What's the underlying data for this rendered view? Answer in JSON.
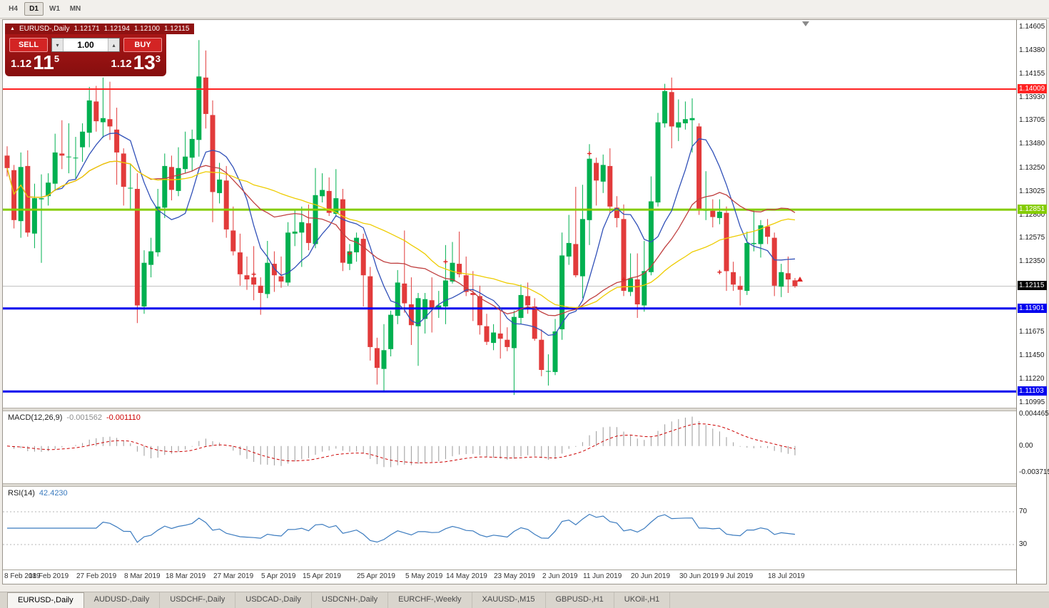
{
  "toolbar": {
    "timeframes": [
      {
        "label": "H4",
        "active": false
      },
      {
        "label": "D1",
        "active": true
      },
      {
        "label": "W1",
        "active": false
      },
      {
        "label": "MN",
        "active": false
      }
    ]
  },
  "icons": {
    "collapse": "▲",
    "volume_down": "▾",
    "volume_up": "▴"
  },
  "quote_bar": {
    "symbol": "EURUSD-,Daily",
    "open": "1.12171",
    "high": "1.12194",
    "low": "1.12100",
    "close": "1.12115"
  },
  "trade_widget": {
    "sell_label": "SELL",
    "buy_label": "BUY",
    "volume": "1.00",
    "sell_price": {
      "prefix": "1.12",
      "big": "11",
      "sup": "5"
    },
    "buy_price": {
      "prefix": "1.12",
      "big": "13",
      "sup": "3"
    }
  },
  "chart_data": {
    "type": "candlestick",
    "symbol": "EURUSD",
    "timeframe": "Daily",
    "up_color": "#00b050",
    "down_color": "#e23b3b",
    "ylim": [
      1.10995,
      1.14605
    ],
    "y_ticks": [
      "1.14605",
      "1.14380",
      "1.14155",
      "1.13930",
      "1.13705",
      "1.13480",
      "1.13250",
      "1.13025",
      "1.12800",
      "1.12575",
      "1.12350",
      "1.12125",
      "1.11900",
      "1.11675",
      "1.11450",
      "1.11220",
      "1.10995"
    ],
    "x_ticks": [
      {
        "label": "8 Feb 2019",
        "bar": 0
      },
      {
        "label": "18 Feb 2019",
        "bar": 6
      },
      {
        "label": "27 Feb 2019",
        "bar": 13
      },
      {
        "label": "8 Mar 2019",
        "bar": 20
      },
      {
        "label": "18 Mar 2019",
        "bar": 26
      },
      {
        "label": "27 Mar 2019",
        "bar": 33
      },
      {
        "label": "5 Apr 2019",
        "bar": 40
      },
      {
        "label": "15 Apr 2019",
        "bar": 46
      },
      {
        "label": "25 Apr 2019",
        "bar": 54
      },
      {
        "label": "5 May 2019",
        "bar": 61
      },
      {
        "label": "14 May 2019",
        "bar": 67
      },
      {
        "label": "23 May 2019",
        "bar": 74
      },
      {
        "label": "2 Jun 2019",
        "bar": 81
      },
      {
        "label": "11 Jun 2019",
        "bar": 87
      },
      {
        "label": "20 Jun 2019",
        "bar": 94
      },
      {
        "label": "30 Jun 2019",
        "bar": 101
      },
      {
        "label": "9 Jul 2019",
        "bar": 107
      },
      {
        "label": "18 Jul 2019",
        "bar": 114
      }
    ],
    "candles": [
      [
        1.1337,
        1.1346,
        1.1317,
        1.1325
      ],
      [
        1.1323,
        1.1328,
        1.1267,
        1.1275
      ],
      [
        1.1274,
        1.134,
        1.1258,
        1.1326
      ],
      [
        1.1327,
        1.1342,
        1.1259,
        1.1263
      ],
      [
        1.1262,
        1.131,
        1.1248,
        1.1296
      ],
      [
        1.1295,
        1.1319,
        1.1234,
        1.1296
      ],
      [
        1.1298,
        1.132,
        1.1289,
        1.1311
      ],
      [
        1.131,
        1.1358,
        1.1303,
        1.134
      ],
      [
        1.1339,
        1.1371,
        1.1324,
        1.1337
      ],
      [
        1.1336,
        1.1368,
        1.132,
        1.1336
      ],
      [
        1.1335,
        1.1355,
        1.1315,
        1.1335
      ],
      [
        1.1345,
        1.1368,
        1.1331,
        1.136
      ],
      [
        1.1359,
        1.1403,
        1.1345,
        1.139
      ],
      [
        1.1389,
        1.1404,
        1.136,
        1.137
      ],
      [
        1.1369,
        1.1412,
        1.1354,
        1.1373
      ],
      [
        1.1372,
        1.1408,
        1.1352,
        1.1365
      ],
      [
        1.1362,
        1.1383,
        1.1309,
        1.134
      ],
      [
        1.1339,
        1.1344,
        1.1289,
        1.1307
      ],
      [
        1.1306,
        1.1329,
        1.1285,
        1.1306
      ],
      [
        1.1305,
        1.132,
        1.1176,
        1.1193
      ],
      [
        1.1192,
        1.1246,
        1.1185,
        1.1234
      ],
      [
        1.1232,
        1.1258,
        1.122,
        1.1245
      ],
      [
        1.1244,
        1.1305,
        1.124,
        1.1288
      ],
      [
        1.1287,
        1.1339,
        1.1277,
        1.1327
      ],
      [
        1.1326,
        1.1337,
        1.1294,
        1.1304
      ],
      [
        1.1303,
        1.1345,
        1.1298,
        1.1325
      ],
      [
        1.1324,
        1.136,
        1.132,
        1.1336
      ],
      [
        1.1335,
        1.1362,
        1.1322,
        1.1353
      ],
      [
        1.1352,
        1.1448,
        1.1336,
        1.1413
      ],
      [
        1.1412,
        1.1438,
        1.1363,
        1.1377
      ],
      [
        1.1376,
        1.139,
        1.1273,
        1.1302
      ],
      [
        1.1301,
        1.133,
        1.1291,
        1.1314
      ],
      [
        1.1313,
        1.1327,
        1.1258,
        1.1266
      ],
      [
        1.1265,
        1.1288,
        1.1241,
        1.1245
      ],
      [
        1.1244,
        1.1262,
        1.1212,
        1.1223
      ],
      [
        1.1222,
        1.124,
        1.1208,
        1.1218
      ],
      [
        1.122,
        1.125,
        1.1198,
        1.1213
      ],
      [
        1.1212,
        1.122,
        1.1184,
        1.1205
      ],
      [
        1.1204,
        1.1255,
        1.12,
        1.1234
      ],
      [
        1.1233,
        1.1245,
        1.1206,
        1.1222
      ],
      [
        1.1221,
        1.124,
        1.121,
        1.1216
      ],
      [
        1.1215,
        1.1273,
        1.1212,
        1.1263
      ],
      [
        1.1262,
        1.1285,
        1.125,
        1.1264
      ],
      [
        1.1263,
        1.1288,
        1.123,
        1.1273
      ],
      [
        1.1272,
        1.129,
        1.1246,
        1.1253
      ],
      [
        1.1252,
        1.1325,
        1.1248,
        1.1299
      ],
      [
        1.1298,
        1.132,
        1.1292,
        1.1304
      ],
      [
        1.1303,
        1.1316,
        1.1279,
        1.1282
      ],
      [
        1.1281,
        1.1324,
        1.1278,
        1.1296
      ],
      [
        1.1295,
        1.1305,
        1.1226,
        1.1234
      ],
      [
        1.1233,
        1.1252,
        1.1227,
        1.1245
      ],
      [
        1.1244,
        1.1263,
        1.1235,
        1.1258
      ],
      [
        1.1257,
        1.1262,
        1.1192,
        1.1222
      ],
      [
        1.1221,
        1.123,
        1.114,
        1.1153
      ],
      [
        1.1152,
        1.1162,
        1.1117,
        1.1133
      ],
      [
        1.1132,
        1.1175,
        1.1111,
        1.115
      ],
      [
        1.1151,
        1.1188,
        1.1144,
        1.1184
      ],
      [
        1.1183,
        1.1227,
        1.1175,
        1.1215
      ],
      [
        1.1214,
        1.1265,
        1.1186,
        1.1195
      ],
      [
        1.1194,
        1.122,
        1.1155,
        1.1174
      ],
      [
        1.1173,
        1.1205,
        1.1135,
        1.12
      ],
      [
        1.118,
        1.1205,
        1.1166,
        1.1199
      ],
      [
        1.1198,
        1.122,
        1.1167,
        1.1191
      ],
      [
        1.119,
        1.1207,
        1.1181,
        1.1193
      ],
      [
        1.1192,
        1.1251,
        1.1175,
        1.1217
      ],
      [
        1.1216,
        1.1254,
        1.1214,
        1.1234
      ],
      [
        1.1233,
        1.1264,
        1.122,
        1.1223
      ],
      [
        1.1222,
        1.124,
        1.1202,
        1.1206
      ],
      [
        1.1205,
        1.1226,
        1.1178,
        1.1203
      ],
      [
        1.1202,
        1.1212,
        1.1165,
        1.1174
      ],
      [
        1.1173,
        1.1185,
        1.1155,
        1.1158
      ],
      [
        1.1157,
        1.1175,
        1.115,
        1.1167
      ],
      [
        1.1166,
        1.1188,
        1.1142,
        1.1161
      ],
      [
        1.116,
        1.1172,
        1.1149,
        1.1153
      ],
      [
        1.1152,
        1.1188,
        1.1107,
        1.1182
      ],
      [
        1.1181,
        1.1213,
        1.1175,
        1.1203
      ],
      [
        1.1202,
        1.1215,
        1.1185,
        1.1193
      ],
      [
        1.1192,
        1.12,
        1.1159,
        1.1161
      ],
      [
        1.116,
        1.117,
        1.1125,
        1.1131
      ],
      [
        1.113,
        1.1146,
        1.1116,
        1.113
      ],
      [
        1.1129,
        1.118,
        1.1126,
        1.1168
      ],
      [
        1.117,
        1.1263,
        1.116,
        1.1241
      ],
      [
        1.124,
        1.128,
        1.1232,
        1.1253
      ],
      [
        1.1252,
        1.1307,
        1.122,
        1.1222
      ],
      [
        1.1221,
        1.1309,
        1.12,
        1.1276
      ],
      [
        1.1275,
        1.1348,
        1.1251,
        1.1334
      ],
      [
        1.133,
        1.1335,
        1.1289,
        1.1313
      ],
      [
        1.1312,
        1.1338,
        1.1301,
        1.1328
      ],
      [
        1.1327,
        1.1344,
        1.1282,
        1.1288
      ],
      [
        1.1287,
        1.1298,
        1.1268,
        1.1277
      ],
      [
        1.1276,
        1.129,
        1.1202,
        1.1207
      ],
      [
        1.1206,
        1.1243,
        1.1202,
        1.1219
      ],
      [
        1.1218,
        1.1243,
        1.1181,
        1.1194
      ],
      [
        1.1193,
        1.1255,
        1.1187,
        1.1226
      ],
      [
        1.1225,
        1.1317,
        1.1222,
        1.1293
      ],
      [
        1.1292,
        1.1378,
        1.1288,
        1.1369
      ],
      [
        1.1368,
        1.1406,
        1.1364,
        1.1399
      ],
      [
        1.1398,
        1.1412,
        1.1344,
        1.1365
      ],
      [
        1.1364,
        1.1391,
        1.1351,
        1.1369
      ],
      [
        1.1368,
        1.1389,
        1.1362,
        1.1372
      ],
      [
        1.1371,
        1.1392,
        1.134,
        1.1373
      ],
      [
        1.1365,
        1.1368,
        1.128,
        1.1285
      ],
      [
        1.1284,
        1.1322,
        1.1275,
        1.1285
      ],
      [
        1.1284,
        1.1295,
        1.1268,
        1.1278
      ],
      [
        1.1277,
        1.1295,
        1.1271,
        1.1283
      ],
      [
        1.1282,
        1.1288,
        1.1207,
        1.1226
      ],
      [
        1.1225,
        1.1235,
        1.1207,
        1.1213
      ],
      [
        1.1212,
        1.1221,
        1.1193,
        1.1208
      ],
      [
        1.1207,
        1.1264,
        1.1203,
        1.1253
      ],
      [
        1.1252,
        1.1285,
        1.1245,
        1.1253
      ],
      [
        1.1252,
        1.1275,
        1.1239,
        1.127
      ],
      [
        1.1269,
        1.1276,
        1.1252,
        1.1259
      ],
      [
        1.1258,
        1.1263,
        1.1202,
        1.1212
      ],
      [
        1.1211,
        1.1233,
        1.1201,
        1.1225
      ],
      [
        1.1224,
        1.124,
        1.1205,
        1.1218
      ],
      [
        1.12171,
        1.12194,
        1.121,
        1.12115
      ]
    ],
    "hlines": [
      {
        "value": 1.14009,
        "label": "1.14009",
        "color": "#ff2222",
        "width": 2
      },
      {
        "value": 1.12851,
        "label": "1.12851",
        "color": "#84cc00",
        "width": 3
      },
      {
        "value": 1.11901,
        "label": "1.11901",
        "color": "#0000ee",
        "width": 3
      },
      {
        "value": 1.11103,
        "label": "1.11103",
        "color": "#0000ee",
        "width": 3
      }
    ],
    "current_price": {
      "value": 1.12115,
      "label": "1.12115",
      "box_color": "#000000"
    },
    "moving_averages": [
      {
        "name": "ma-fast-line",
        "period": 8,
        "color": "#3050b8"
      },
      {
        "name": "ma-mid-line",
        "period": 21,
        "color": "#c04040"
      },
      {
        "name": "ma-slow-line",
        "period": 34,
        "color": "#eecc00"
      }
    ],
    "markers": {
      "plus": {
        "color": "#dd2222",
        "points": [
          [
            36,
            1.1223
          ],
          [
            50,
            1.1243
          ],
          [
            64,
            1.1235
          ],
          [
            85,
            1.1339
          ],
          [
            90,
            1.1218
          ],
          [
            104,
            1.1225
          ]
        ]
      },
      "arrows": {
        "color": "#dd2222",
        "points": [
          [
            115,
            1.1218
          ]
        ]
      }
    },
    "indicators": {
      "macd": {
        "label": "MACD(12,26,9)",
        "fast": 12,
        "slow": 26,
        "signal": 9,
        "value_main": "-0.001562",
        "value_signal": "-0.001110",
        "hist_color": "#9a9a9a",
        "signal_color": "#cc0000",
        "y_ticks": [
          {
            "label": "0.004465",
            "value": 0.004465
          },
          {
            "label": "0.00",
            "value": 0
          },
          {
            "label": "-0.003715",
            "value": -0.003715
          }
        ]
      },
      "rsi": {
        "label": "RSI(14)",
        "period": 14,
        "value": "42.4230",
        "levels": [
          70,
          30
        ],
        "color": "#3b7bbf",
        "range": [
          0,
          100
        ]
      }
    }
  },
  "tabs": [
    {
      "label": "EURUSD-,Daily",
      "active": true
    },
    {
      "label": "AUDUSD-,Daily",
      "active": false
    },
    {
      "label": "USDCHF-,Daily",
      "active": false
    },
    {
      "label": "USDCAD-,Daily",
      "active": false
    },
    {
      "label": "USDCNH-,Daily",
      "active": false
    },
    {
      "label": "EURCHF-,Weekly",
      "active": false
    },
    {
      "label": "XAUUSD-,M15",
      "active": false
    },
    {
      "label": "GBPUSD-,H1",
      "active": false
    },
    {
      "label": "UKOil-,H1",
      "active": false
    }
  ]
}
